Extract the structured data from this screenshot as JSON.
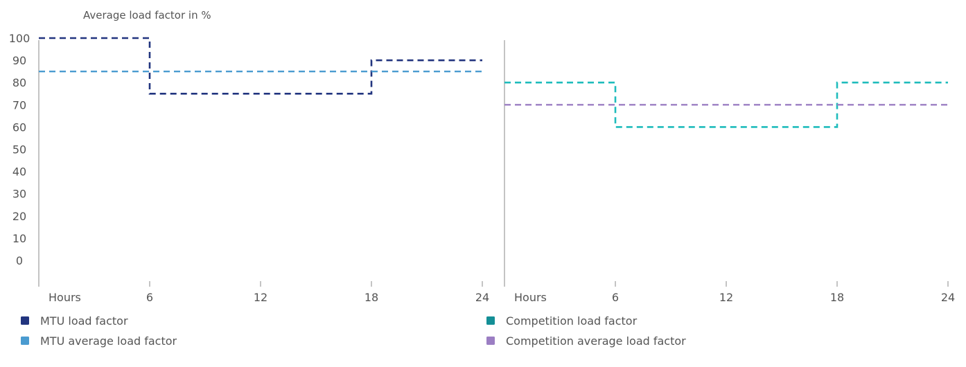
{
  "chart_data": {
    "type": "line",
    "title": "Average load factor in %",
    "yticks": [
      "100",
      "90",
      "80",
      "70",
      "60",
      "50",
      "40",
      "30",
      "20",
      "10",
      "0"
    ],
    "ylim": [
      0,
      100
    ],
    "xlim": [
      0,
      24
    ],
    "xlabel": "Hours",
    "xticks": [
      "6",
      "12",
      "18",
      "24"
    ],
    "grid": false,
    "panels": [
      {
        "series": [
          {
            "name": "MTU load factor",
            "color": "#22357f",
            "step": true,
            "x": [
              0,
              6,
              6,
              18,
              18,
              24
            ],
            "y": [
              100,
              100,
              75,
              75,
              90,
              90
            ]
          },
          {
            "name": "MTU average load factor",
            "color": "#4a9bd0",
            "step": false,
            "x": [
              0,
              24
            ],
            "y": [
              85,
              85
            ]
          }
        ]
      },
      {
        "series": [
          {
            "name": "Competition load factor",
            "color": "#1fbcbc",
            "step": true,
            "x": [
              0,
              6,
              6,
              18,
              18,
              24
            ],
            "y": [
              80,
              80,
              60,
              60,
              80,
              80
            ]
          },
          {
            "name": "Competition average load factor",
            "color": "#9b7ec3",
            "step": false,
            "x": [
              0,
              24
            ],
            "y": [
              70,
              70
            ]
          }
        ]
      }
    ],
    "legend": [
      [
        {
          "label": "MTU load factor",
          "color": "#22357f"
        },
        {
          "label": "MTU average load factor",
          "color": "#4a9bd0"
        }
      ],
      [
        {
          "label": "Competition load factor",
          "color": "#148f96"
        },
        {
          "label": "Competition average load factor",
          "color": "#9b7ec3"
        }
      ]
    ]
  }
}
